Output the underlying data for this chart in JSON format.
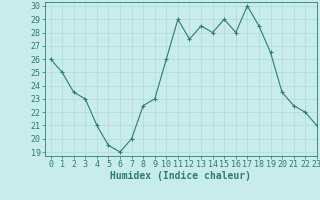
{
  "x": [
    0,
    1,
    2,
    3,
    4,
    5,
    6,
    7,
    8,
    9,
    10,
    11,
    12,
    13,
    14,
    15,
    16,
    17,
    18,
    19,
    20,
    21,
    22,
    23
  ],
  "y": [
    26,
    25,
    23.5,
    23,
    21,
    19.5,
    19,
    20,
    22.5,
    23,
    26,
    29,
    27.5,
    28.5,
    28,
    29,
    28,
    30,
    28.5,
    26.5,
    23.5,
    22.5,
    22,
    21
  ],
  "line_color": "#2d7d6e",
  "marker": "+",
  "bg_color": "#c8ecec",
  "grid_color": "#b5d8d8",
  "xlabel": "Humidex (Indice chaleur)",
  "ylim_min": 19,
  "ylim_max": 30,
  "xlim_min": -0.5,
  "xlim_max": 23,
  "yticks": [
    19,
    20,
    21,
    22,
    23,
    24,
    25,
    26,
    27,
    28,
    29,
    30
  ],
  "xticks": [
    0,
    1,
    2,
    3,
    4,
    5,
    6,
    7,
    8,
    9,
    10,
    11,
    12,
    13,
    14,
    15,
    16,
    17,
    18,
    19,
    20,
    21,
    22,
    23
  ],
  "tick_color": "#2d7d6e",
  "label_fontsize": 6,
  "xlabel_fontsize": 7,
  "markersize": 3,
  "linewidth": 0.8
}
